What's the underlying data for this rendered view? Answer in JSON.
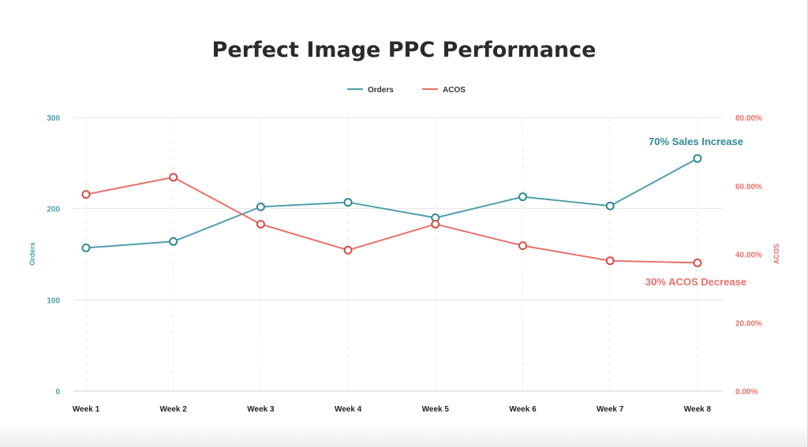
{
  "chart_data": {
    "type": "line",
    "title": "Perfect Image PPC Performance",
    "categories": [
      "Week 1",
      "Week 2",
      "Week 3",
      "Week 4",
      "Week 5",
      "Week 6",
      "Week 7",
      "Week 8"
    ],
    "series": [
      {
        "name": "Orders",
        "axis": "left",
        "color": "#4e9fab",
        "values": [
          157,
          164,
          202,
          207,
          190,
          213,
          203,
          255
        ]
      },
      {
        "name": "ACOS",
        "axis": "right",
        "color": "#e8716b",
        "values": [
          57.5,
          62.5,
          48.8,
          41.2,
          48.8,
          42.5,
          38.1,
          37.5
        ]
      }
    ],
    "ylabel_left": "Orders",
    "ylabel_right": "ACOS",
    "ylim_left": [
      0,
      300
    ],
    "ylim_right": [
      0,
      80
    ],
    "yticks_left": [
      "300",
      "200",
      "100",
      "0"
    ],
    "yticks_right": [
      "80.00%",
      "60.00%",
      "40.00%",
      "20.00%",
      "0.00%"
    ],
    "legend_position": "top-center",
    "grid": true,
    "annotations": [
      {
        "text": "70% Sales Increase",
        "color": "#2f8a95"
      },
      {
        "text": "30% ACOS Decrease",
        "color": "#e8716b"
      }
    ]
  }
}
